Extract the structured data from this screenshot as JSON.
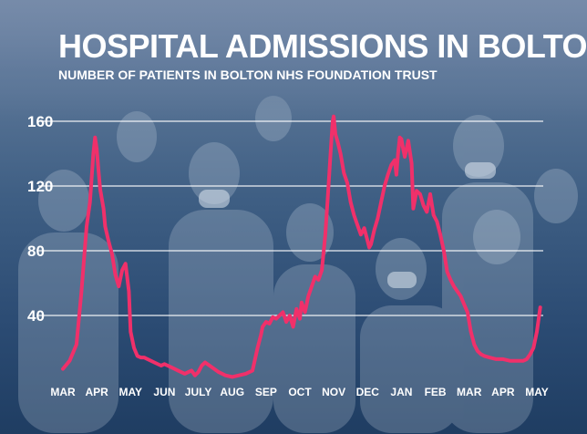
{
  "header": {
    "title": "HOSPITAL ADMISSIONS IN BOLTON",
    "subtitle": "NUMBER OF PATIENTS IN BOLTON NHS FOUNDATION TRUST"
  },
  "colors": {
    "line": "#f0306a",
    "grid": "#ffffff",
    "text": "#ffffff",
    "background": "#2b4b73"
  },
  "chart_data": {
    "type": "line",
    "title": "HOSPITAL ADMISSIONS IN BOLTON",
    "subtitle": "NUMBER OF PATIENTS IN BOLTON NHS FOUNDATION TRUST",
    "ylim": [
      0,
      160
    ],
    "yticks": [
      40,
      80,
      120,
      160
    ],
    "ytick_labels": [
      "40",
      "80",
      "120",
      "160"
    ],
    "grid": true,
    "x_labels": [
      "MAR",
      "APR",
      "MAY",
      "JUN",
      "JULY",
      "AUG",
      "SEP",
      "OCT",
      "NOV",
      "DEC",
      "JAN",
      "FEB",
      "MAR",
      "APR",
      "MAY"
    ],
    "series": [
      {
        "x_month_index": [
          0,
          0.2,
          0.4,
          0.55,
          0.7,
          0.8,
          0.9,
          0.95,
          1.0,
          1.05,
          1.1,
          1.2,
          1.25,
          1.35,
          1.45,
          1.55,
          1.65,
          1.75,
          1.85,
          1.95,
          2.0,
          2.1,
          2.2,
          2.3,
          2.4,
          2.5,
          2.7,
          2.9,
          3.0,
          3.2,
          3.4,
          3.6,
          3.8,
          3.9,
          4.0,
          4.1,
          4.2,
          4.4,
          4.6,
          4.8,
          5.0,
          5.2,
          5.4,
          5.6,
          5.75,
          5.85,
          5.9,
          6.0,
          6.1,
          6.2,
          6.3,
          6.4,
          6.5,
          6.6,
          6.7,
          6.8,
          6.9,
          7.0,
          7.05,
          7.15,
          7.25,
          7.35,
          7.45,
          7.55,
          7.65,
          7.75,
          7.82,
          7.87,
          7.92,
          7.97,
          8.0,
          8.05,
          8.12,
          8.2,
          8.3,
          8.4,
          8.5,
          8.6,
          8.7,
          8.8,
          8.9,
          9.0,
          9.05,
          9.1,
          9.2,
          9.3,
          9.4,
          9.5,
          9.6,
          9.7,
          9.8,
          9.85,
          9.9,
          9.95,
          10.0,
          10.05,
          10.1,
          10.2,
          10.3,
          10.35,
          10.45,
          10.55,
          10.65,
          10.75,
          10.85,
          10.95,
          11.05,
          11.15,
          11.25,
          11.35,
          11.45,
          11.55,
          11.65,
          11.75,
          11.85,
          11.95,
          12.05,
          12.15,
          12.25,
          12.35,
          12.45,
          12.6,
          12.8,
          13.0,
          13.2,
          13.4,
          13.6,
          13.7,
          13.8,
          13.9,
          14.0,
          14.1
        ],
        "values": [
          7,
          12,
          22,
          55,
          95,
          110,
          140,
          150,
          143,
          130,
          118,
          106,
          95,
          86,
          78,
          65,
          58,
          68,
          72,
          55,
          30,
          20,
          15,
          14,
          14,
          13,
          11,
          9,
          10,
          8,
          6,
          4,
          6,
          3,
          5,
          9,
          11,
          8,
          5,
          3,
          2,
          3,
          4,
          6,
          20,
          28,
          33,
          36,
          35,
          39,
          38,
          40,
          42,
          36,
          40,
          33,
          44,
          38,
          48,
          42,
          52,
          58,
          64,
          62,
          68,
          90,
          112,
          128,
          145,
          160,
          163,
          152,
          147,
          140,
          128,
          122,
          110,
          102,
          96,
          90,
          94,
          86,
          82,
          84,
          93,
          100,
          110,
          120,
          127,
          133,
          136,
          127,
          140,
          150,
          149,
          143,
          138,
          148,
          134,
          106,
          117,
          115,
          108,
          104,
          115,
          102,
          98,
          90,
          80,
          67,
          62,
          58,
          55,
          52,
          47,
          42,
          30,
          22,
          18,
          16,
          15,
          14,
          13,
          13,
          12,
          12,
          12,
          13,
          16,
          20,
          30,
          45
        ]
      }
    ]
  }
}
